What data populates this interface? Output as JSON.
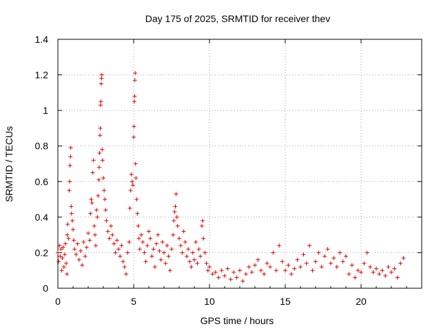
{
  "chart_data": {
    "type": "scatter",
    "title": "Day 175 of 2025, SRMTID for receiver thev",
    "xlabel": "GPS time / hours",
    "ylabel": "SRMTID / TECUs",
    "xlim": [
      0,
      24
    ],
    "ylim": [
      0,
      1.4
    ],
    "x_ticks": [
      0,
      5,
      10,
      15,
      20
    ],
    "x_tick_labels": [
      "0",
      "5",
      "10",
      "15",
      "20"
    ],
    "y_ticks": [
      0,
      0.2,
      0.4,
      0.6,
      0.8,
      1.0,
      1.2,
      1.4
    ],
    "y_tick_labels": [
      "0",
      "0.2",
      "0.4",
      "0.6",
      "0.8",
      "1",
      "1.2",
      "1.4"
    ],
    "grid": true,
    "marker": "+",
    "series_color": "#e00000",
    "series": [
      {
        "name": "SRMTID",
        "points": [
          [
            0.0,
            0.2
          ],
          [
            0.05,
            0.15
          ],
          [
            0.1,
            0.24
          ],
          [
            0.15,
            0.18
          ],
          [
            0.2,
            0.22
          ],
          [
            0.25,
            0.1
          ],
          [
            0.3,
            0.17
          ],
          [
            0.35,
            0.23
          ],
          [
            0.4,
            0.12
          ],
          [
            0.45,
            0.19
          ],
          [
            0.5,
            0.25
          ],
          [
            0.55,
            0.14
          ],
          [
            0.6,
            0.08
          ],
          [
            0.62,
            0.3
          ],
          [
            0.65,
            0.36
          ],
          [
            0.7,
            0.28
          ],
          [
            0.75,
            0.55
          ],
          [
            0.78,
            0.6
          ],
          [
            0.8,
            0.69
          ],
          [
            0.83,
            0.74
          ],
          [
            0.85,
            0.79
          ],
          [
            0.88,
            0.46
          ],
          [
            0.9,
            0.42
          ],
          [
            0.95,
            0.38
          ],
          [
            1.0,
            0.33
          ],
          [
            1.05,
            0.27
          ],
          [
            1.1,
            0.22
          ],
          [
            1.2,
            0.19
          ],
          [
            1.3,
            0.25
          ],
          [
            1.4,
            0.16
          ],
          [
            1.5,
            0.21
          ],
          [
            1.6,
            0.13
          ],
          [
            1.7,
            0.26
          ],
          [
            1.8,
            0.18
          ],
          [
            1.9,
            0.23
          ],
          [
            2.0,
            0.31
          ],
          [
            2.1,
            0.27
          ],
          [
            2.15,
            0.42
          ],
          [
            2.2,
            0.5
          ],
          [
            2.25,
            0.48
          ],
          [
            2.3,
            0.65
          ],
          [
            2.35,
            0.72
          ],
          [
            2.4,
            0.35
          ],
          [
            2.45,
            0.3
          ],
          [
            2.5,
            0.24
          ],
          [
            2.55,
            0.44
          ],
          [
            2.6,
            0.4
          ],
          [
            2.65,
            0.52
          ],
          [
            2.7,
            0.61
          ],
          [
            2.72,
            0.68
          ],
          [
            2.75,
            0.76
          ],
          [
            2.78,
            0.86
          ],
          [
            2.8,
            0.9
          ],
          [
            2.82,
            1.03
          ],
          [
            2.84,
            1.05
          ],
          [
            2.86,
            1.15
          ],
          [
            2.88,
            1.18
          ],
          [
            2.9,
            1.2
          ],
          [
            2.92,
            0.78
          ],
          [
            2.95,
            0.72
          ],
          [
            3.0,
            0.62
          ],
          [
            3.05,
            0.55
          ],
          [
            3.1,
            0.5
          ],
          [
            3.15,
            0.44
          ],
          [
            3.2,
            0.38
          ],
          [
            3.3,
            0.32
          ],
          [
            3.4,
            0.28
          ],
          [
            3.5,
            0.35
          ],
          [
            3.6,
            0.3
          ],
          [
            3.7,
            0.25
          ],
          [
            3.8,
            0.2
          ],
          [
            3.9,
            0.27
          ],
          [
            4.0,
            0.22
          ],
          [
            4.1,
            0.18
          ],
          [
            4.2,
            0.24
          ],
          [
            4.3,
            0.15
          ],
          [
            4.4,
            0.12
          ],
          [
            4.5,
            0.08
          ],
          [
            4.6,
            0.2
          ],
          [
            4.7,
            0.26
          ],
          [
            4.75,
            0.45
          ],
          [
            4.8,
            0.55
          ],
          [
            4.85,
            0.64
          ],
          [
            4.9,
            0.6
          ],
          [
            4.95,
            0.58
          ],
          [
            5.0,
            0.85
          ],
          [
            5.02,
            0.91
          ],
          [
            5.04,
            1.05
          ],
          [
            5.06,
            1.08
          ],
          [
            5.08,
            1.17
          ],
          [
            5.1,
            1.21
          ],
          [
            5.12,
            0.7
          ],
          [
            5.15,
            0.62
          ],
          [
            5.2,
            0.5
          ],
          [
            5.25,
            0.42
          ],
          [
            5.3,
            0.35
          ],
          [
            5.35,
            0.28
          ],
          [
            5.4,
            0.22
          ],
          [
            5.5,
            0.3
          ],
          [
            5.6,
            0.26
          ],
          [
            5.7,
            0.2
          ],
          [
            5.8,
            0.15
          ],
          [
            5.9,
            0.24
          ],
          [
            6.0,
            0.32
          ],
          [
            6.1,
            0.28
          ],
          [
            6.2,
            0.18
          ],
          [
            6.3,
            0.22
          ],
          [
            6.4,
            0.12
          ],
          [
            6.5,
            0.25
          ],
          [
            6.6,
            0.3
          ],
          [
            6.7,
            0.21
          ],
          [
            6.8,
            0.16
          ],
          [
            6.9,
            0.26
          ],
          [
            7.0,
            0.2
          ],
          [
            7.1,
            0.14
          ],
          [
            7.2,
            0.24
          ],
          [
            7.3,
            0.18
          ],
          [
            7.4,
            0.1
          ],
          [
            7.5,
            0.22
          ],
          [
            7.6,
            0.3
          ],
          [
            7.65,
            0.38
          ],
          [
            7.7,
            0.43
          ],
          [
            7.75,
            0.46
          ],
          [
            7.8,
            0.53
          ],
          [
            7.85,
            0.4
          ],
          [
            7.9,
            0.35
          ],
          [
            8.0,
            0.28
          ],
          [
            8.1,
            0.24
          ],
          [
            8.2,
            0.2
          ],
          [
            8.3,
            0.32
          ],
          [
            8.4,
            0.26
          ],
          [
            8.5,
            0.18
          ],
          [
            8.6,
            0.22
          ],
          [
            8.7,
            0.15
          ],
          [
            8.8,
            0.12
          ],
          [
            8.9,
            0.2
          ],
          [
            9.0,
            0.16
          ],
          [
            9.1,
            0.26
          ],
          [
            9.2,
            0.14
          ],
          [
            9.3,
            0.22
          ],
          [
            9.4,
            0.18
          ],
          [
            9.5,
            0.35
          ],
          [
            9.55,
            0.38
          ],
          [
            9.6,
            0.28
          ],
          [
            9.7,
            0.2
          ],
          [
            9.8,
            0.14
          ],
          [
            9.9,
            0.1
          ],
          [
            10.0,
            0.12
          ],
          [
            10.2,
            0.08
          ],
          [
            10.4,
            0.09
          ],
          [
            10.6,
            0.06
          ],
          [
            10.8,
            0.1
          ],
          [
            11.0,
            0.07
          ],
          [
            11.2,
            0.11
          ],
          [
            11.4,
            0.05
          ],
          [
            11.6,
            0.09
          ],
          [
            11.8,
            0.06
          ],
          [
            12.0,
            0.1
          ],
          [
            12.2,
            0.04
          ],
          [
            12.4,
            0.08
          ],
          [
            12.6,
            0.12
          ],
          [
            12.8,
            0.09
          ],
          [
            13.0,
            0.13
          ],
          [
            13.2,
            0.16
          ],
          [
            13.4,
            0.1
          ],
          [
            13.6,
            0.08
          ],
          [
            13.8,
            0.14
          ],
          [
            14.0,
            0.12
          ],
          [
            14.2,
            0.2
          ],
          [
            14.4,
            0.1
          ],
          [
            14.6,
            0.24
          ],
          [
            14.8,
            0.15
          ],
          [
            15.0,
            0.1
          ],
          [
            15.2,
            0.13
          ],
          [
            15.4,
            0.08
          ],
          [
            15.6,
            0.11
          ],
          [
            15.8,
            0.16
          ],
          [
            16.0,
            0.12
          ],
          [
            16.2,
            0.19
          ],
          [
            16.4,
            0.14
          ],
          [
            16.6,
            0.24
          ],
          [
            16.8,
            0.1
          ],
          [
            17.0,
            0.15
          ],
          [
            17.2,
            0.2
          ],
          [
            17.4,
            0.12
          ],
          [
            17.6,
            0.18
          ],
          [
            17.8,
            0.22
          ],
          [
            18.0,
            0.14
          ],
          [
            18.2,
            0.17
          ],
          [
            18.4,
            0.12
          ],
          [
            18.6,
            0.2
          ],
          [
            18.8,
            0.15
          ],
          [
            19.0,
            0.18
          ],
          [
            19.2,
            0.08
          ],
          [
            19.4,
            0.13
          ],
          [
            19.6,
            0.06
          ],
          [
            19.8,
            0.1
          ],
          [
            20.0,
            0.09
          ],
          [
            20.2,
            0.14
          ],
          [
            20.4,
            0.2
          ],
          [
            20.6,
            0.12
          ],
          [
            20.8,
            0.09
          ],
          [
            21.0,
            0.11
          ],
          [
            21.2,
            0.08
          ],
          [
            21.4,
            0.1
          ],
          [
            21.6,
            0.07
          ],
          [
            21.8,
            0.12
          ],
          [
            22.0,
            0.09
          ],
          [
            22.2,
            0.11
          ],
          [
            22.4,
            0.06
          ],
          [
            22.6,
            0.14
          ],
          [
            22.8,
            0.17
          ]
        ]
      }
    ]
  }
}
